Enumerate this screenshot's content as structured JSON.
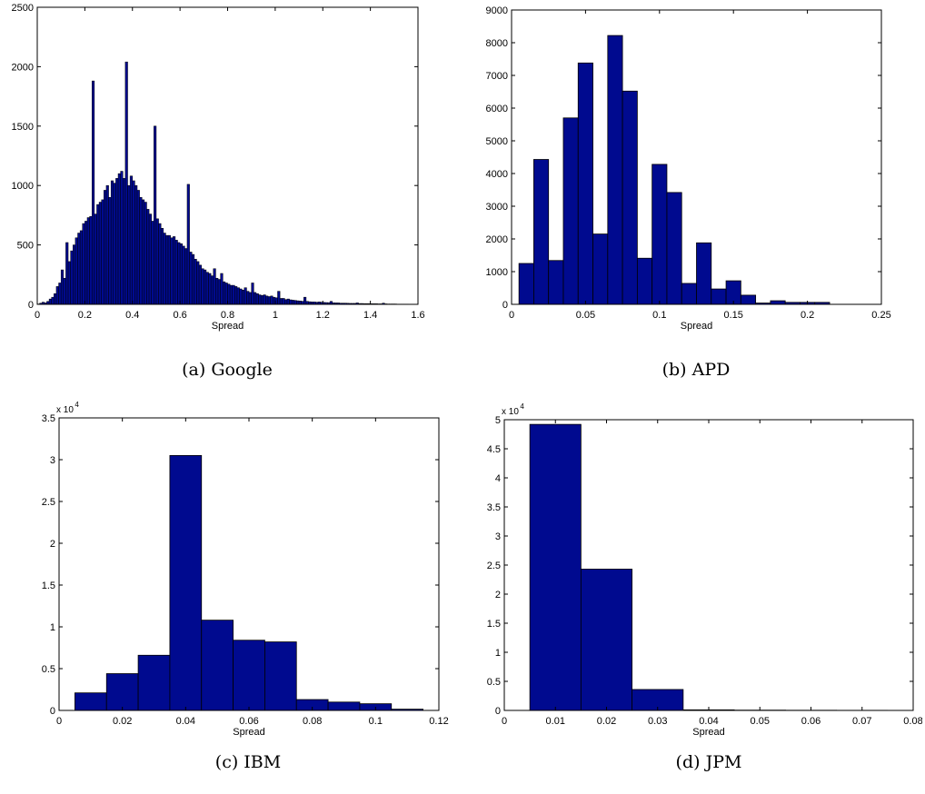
{
  "chart_data": [
    {
      "type": "bar",
      "caption": "(a) Google",
      "xlabel": "Spread",
      "ylabel": "",
      "y_exponent": "",
      "xlim": [
        0,
        1.6
      ],
      "ylim": [
        0,
        2500
      ],
      "xticks": [
        "0",
        "0.2",
        "0.4",
        "0.6",
        "0.8",
        "1",
        "1.2",
        "1.4",
        "1.6"
      ],
      "yticks": [
        "0",
        "500",
        "1000",
        "1500",
        "2000",
        "2500"
      ],
      "bin_start": 0.0,
      "bin_width": 0.01,
      "values": [
        3,
        10,
        18,
        12,
        25,
        45,
        60,
        90,
        150,
        180,
        290,
        220,
        520,
        360,
        450,
        500,
        560,
        600,
        620,
        680,
        700,
        730,
        740,
        1880,
        760,
        840,
        860,
        880,
        960,
        1000,
        900,
        1040,
        1020,
        1060,
        1100,
        1120,
        1060,
        2040,
        1000,
        1080,
        1040,
        1000,
        960,
        900,
        880,
        860,
        800,
        760,
        700,
        1500,
        720,
        680,
        640,
        600,
        580,
        580,
        560,
        570,
        540,
        520,
        510,
        490,
        470,
        1010,
        440,
        420,
        380,
        360,
        330,
        300,
        290,
        270,
        260,
        240,
        300,
        220,
        210,
        260,
        190,
        180,
        170,
        160,
        160,
        150,
        140,
        130,
        120,
        140,
        110,
        100,
        180,
        100,
        90,
        80,
        75,
        80,
        70,
        65,
        70,
        60,
        55,
        110,
        50,
        50,
        40,
        45,
        38,
        35,
        33,
        30,
        28,
        26,
        60,
        25,
        22,
        20,
        20,
        18,
        20,
        18,
        16,
        15,
        14,
        25,
        13,
        12,
        12,
        10,
        10,
        10,
        9,
        8,
        8,
        8,
        12,
        7,
        7,
        6,
        6,
        6,
        5,
        5,
        5,
        4,
        4,
        10,
        4,
        3,
        3,
        3,
        3,
        2,
        2,
        2,
        2,
        2
      ]
    },
    {
      "type": "bar",
      "caption": "(b) APD",
      "xlabel": "Spread",
      "ylabel": "",
      "y_exponent": "",
      "xlim": [
        0,
        0.25
      ],
      "ylim": [
        0,
        9000
      ],
      "xticks": [
        "0",
        "0.05",
        "0.1",
        "0.15",
        "0.2",
        "0.25"
      ],
      "yticks": [
        "0",
        "1000",
        "2000",
        "3000",
        "4000",
        "5000",
        "6000",
        "7000",
        "8000",
        "9000"
      ],
      "bin_start": 0.005,
      "bin_width": 0.01,
      "values": [
        1250,
        4430,
        1340,
        5700,
        7380,
        2150,
        8220,
        6520,
        1410,
        4280,
        3420,
        640,
        1880,
        470,
        720,
        280,
        40,
        110,
        60,
        60,
        60
      ]
    },
    {
      "type": "bar",
      "caption": "(c) IBM",
      "xlabel": "Spread",
      "ylabel": "",
      "y_exponent": "x 10",
      "y_exponent_power": "4",
      "xlim": [
        0,
        0.12
      ],
      "ylim": [
        0,
        3.5
      ],
      "xticks": [
        "0",
        "0.02",
        "0.04",
        "0.06",
        "0.08",
        "0.1",
        "0.12"
      ],
      "yticks": [
        "0",
        "0.5",
        "1",
        "1.5",
        "2",
        "2.5",
        "3",
        "3.5"
      ],
      "bin_start": 0.005,
      "bin_width": 0.01,
      "values": [
        0.21,
        0.44,
        0.66,
        3.05,
        1.08,
        0.84,
        0.82,
        0.13,
        0.1,
        0.08,
        0.015
      ]
    },
    {
      "type": "bar",
      "caption": "(d) JPM",
      "xlabel": "Spread",
      "ylabel": "",
      "y_exponent": "x 10",
      "y_exponent_power": "4",
      "xlim": [
        0,
        0.08
      ],
      "ylim": [
        0,
        5
      ],
      "xticks": [
        "0",
        "0.01",
        "0.02",
        "0.03",
        "0.04",
        "0.05",
        "0.06",
        "0.07",
        "0.08"
      ],
      "yticks": [
        "0",
        "0.5",
        "1",
        "1.5",
        "2",
        "2.5",
        "3",
        "3.5",
        "4",
        "4.5",
        "5"
      ],
      "bin_start": 0.005,
      "bin_width": 0.01,
      "values": [
        4.92,
        2.43,
        0.36,
        0.01,
        0.005,
        0.003,
        0.002
      ]
    }
  ],
  "style": {
    "bar_fill": "#000a8f",
    "bar_edge": "#000000",
    "axis_color": "#000000"
  }
}
